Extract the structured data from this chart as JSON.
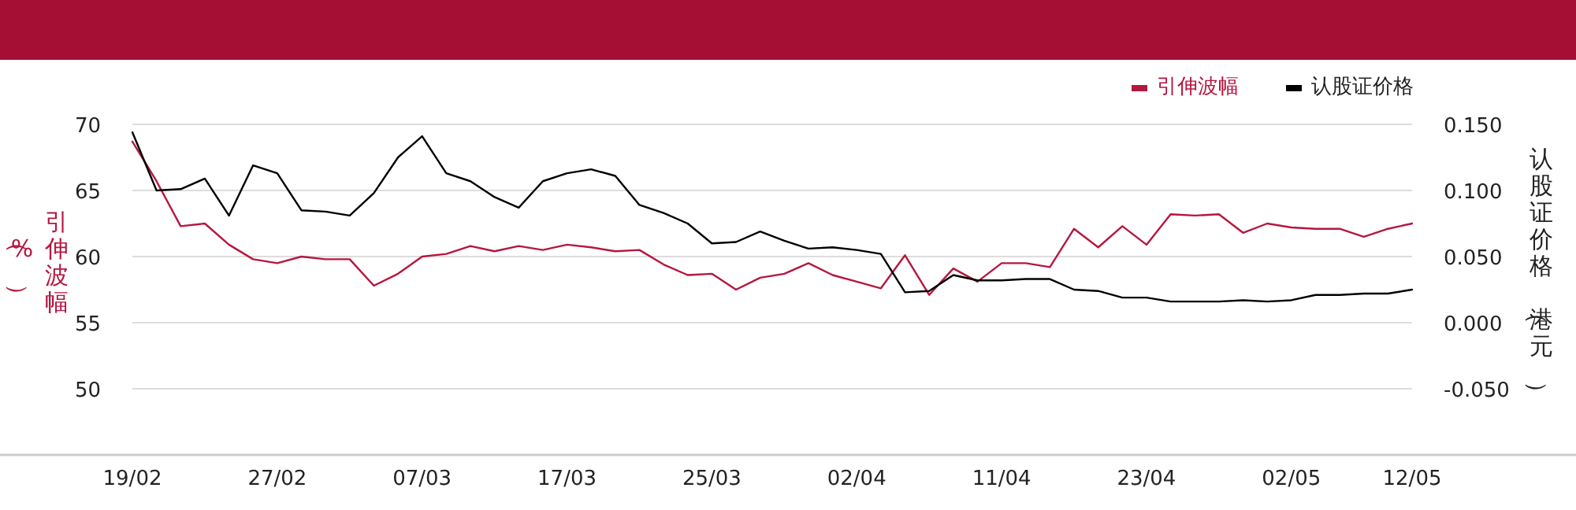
{
  "chart_data": {
    "type": "line",
    "categories": [
      "19/02",
      null,
      null,
      null,
      null,
      null,
      "27/02",
      null,
      null,
      null,
      null,
      null,
      "07/03",
      null,
      null,
      null,
      null,
      null,
      "17/03",
      null,
      null,
      null,
      null,
      null,
      "25/03",
      null,
      null,
      null,
      null,
      null,
      "02/04",
      null,
      null,
      null,
      null,
      null,
      "11/04",
      null,
      null,
      null,
      null,
      null,
      "23/04",
      null,
      null,
      null,
      null,
      null,
      "02/05",
      null,
      null,
      null,
      null,
      "12/05"
    ],
    "series": [
      {
        "name": "引伸波幅",
        "color": "#b5173f",
        "values": [
          68.7,
          65.7,
          62.3,
          62.5,
          60.9,
          59.8,
          59.5,
          60.0,
          59.8,
          59.8,
          57.8,
          58.7,
          60.0,
          60.2,
          60.8,
          60.4,
          60.8,
          60.5,
          60.9,
          60.7,
          60.4,
          60.5,
          59.4,
          58.6,
          58.7,
          57.5,
          58.4,
          58.7,
          59.5,
          58.6,
          58.1,
          57.6,
          60.1,
          57.1,
          59.1,
          58.1,
          59.5,
          59.5,
          59.2,
          62.1,
          60.7,
          62.3,
          60.9,
          63.2,
          63.1,
          63.2,
          61.8,
          62.5,
          62.2,
          62.1,
          62.1,
          61.5,
          62.1,
          62.5
        ]
      },
      {
        "name": "认股证价格",
        "color": "#000000",
        "axis": "y2",
        "values": [
          0.144,
          0.1,
          0.101,
          0.109,
          0.081,
          0.119,
          0.113,
          0.085,
          0.084,
          0.081,
          0.098,
          0.125,
          0.141,
          0.113,
          0.107,
          0.095,
          0.087,
          0.107,
          0.113,
          0.116,
          0.111,
          0.089,
          0.083,
          0.075,
          0.06,
          0.061,
          0.069,
          0.062,
          0.056,
          0.057,
          0.055,
          0.052,
          0.023,
          0.024,
          0.036,
          0.032,
          0.032,
          0.033,
          0.033,
          0.025,
          0.024,
          0.019,
          0.019,
          0.016,
          0.016,
          0.016,
          0.017,
          0.016,
          0.017,
          0.021,
          0.021,
          0.022,
          0.022,
          0.025
        ]
      }
    ],
    "ylabel": "引伸波幅（%）",
    "y2label": "认股证价格（港元）",
    "ylim": [
      45,
      70
    ],
    "yticks": [
      50,
      55,
      60,
      65,
      70
    ],
    "y2lim": [
      -0.1,
      0.15
    ],
    "y2ticks": [
      {
        "value": -0.05,
        "label": "-0.050"
      },
      {
        "value": 0,
        "label": "0.000"
      },
      {
        "value": 0.05,
        "label": "0.050"
      },
      {
        "value": 0.1,
        "label": "0.100"
      },
      {
        "value": 0.15,
        "label": "0.150"
      }
    ],
    "grid": "y",
    "legend": "top right",
    "marker": "none",
    "line_style": "solid"
  }
}
